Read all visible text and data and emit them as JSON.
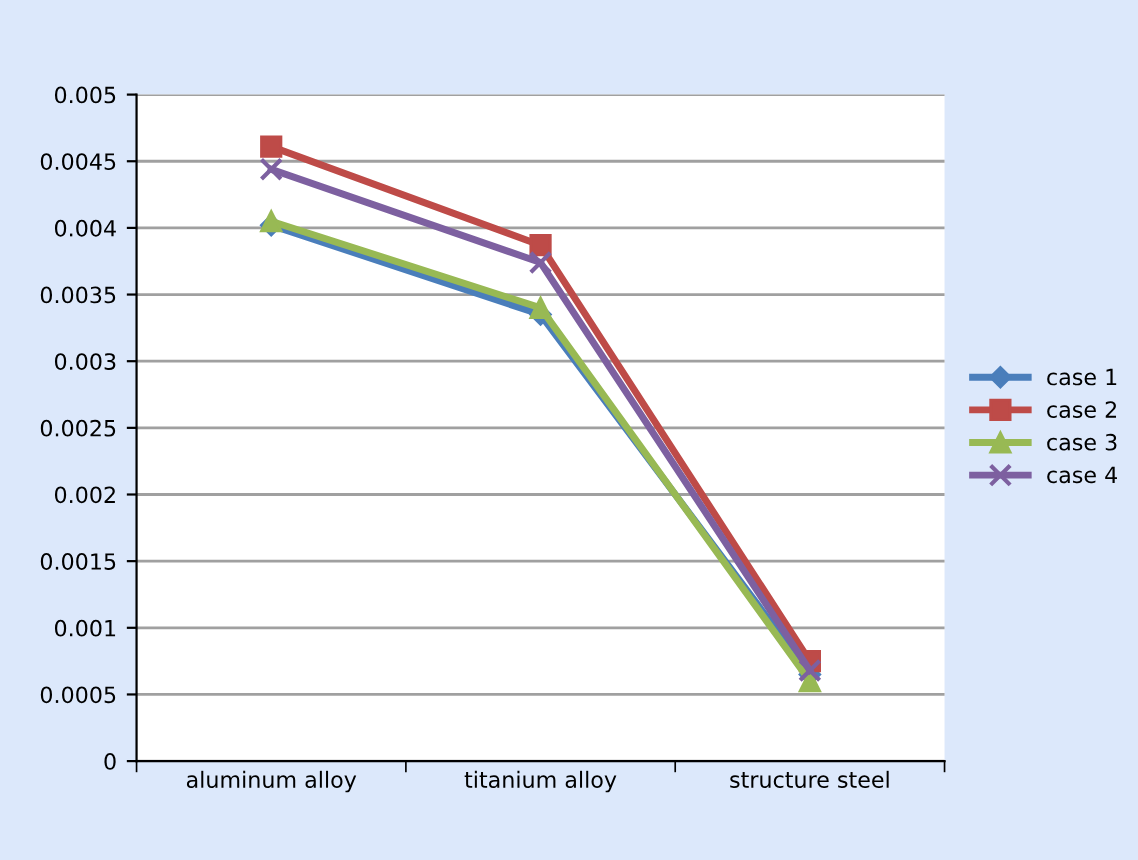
{
  "chart_data": {
    "type": "line",
    "categories": [
      "aluminum alloy",
      "titanium alloy",
      "structure steel"
    ],
    "series": [
      {
        "name": "case 1",
        "color": "#4a7ebb",
        "marker": "diamond",
        "values": [
          0.00402,
          0.00335,
          0.00065
        ]
      },
      {
        "name": "case 2",
        "color": "#be4b48",
        "marker": "square",
        "values": [
          0.00461,
          0.00387,
          0.00075
        ]
      },
      {
        "name": "case 3",
        "color": "#98b954",
        "marker": "triangle",
        "values": [
          0.00405,
          0.0034,
          0.0006
        ]
      },
      {
        "name": "case 4",
        "color": "#7d60a0",
        "marker": "cross",
        "values": [
          0.00444,
          0.00374,
          0.00068
        ]
      }
    ],
    "ylim": [
      0,
      0.005
    ],
    "yticks": [
      0,
      0.0005,
      0.001,
      0.0015,
      0.002,
      0.0025,
      0.003,
      0.0035,
      0.004,
      0.0045,
      0.005
    ],
    "grid": "y",
    "legend": "right"
  }
}
